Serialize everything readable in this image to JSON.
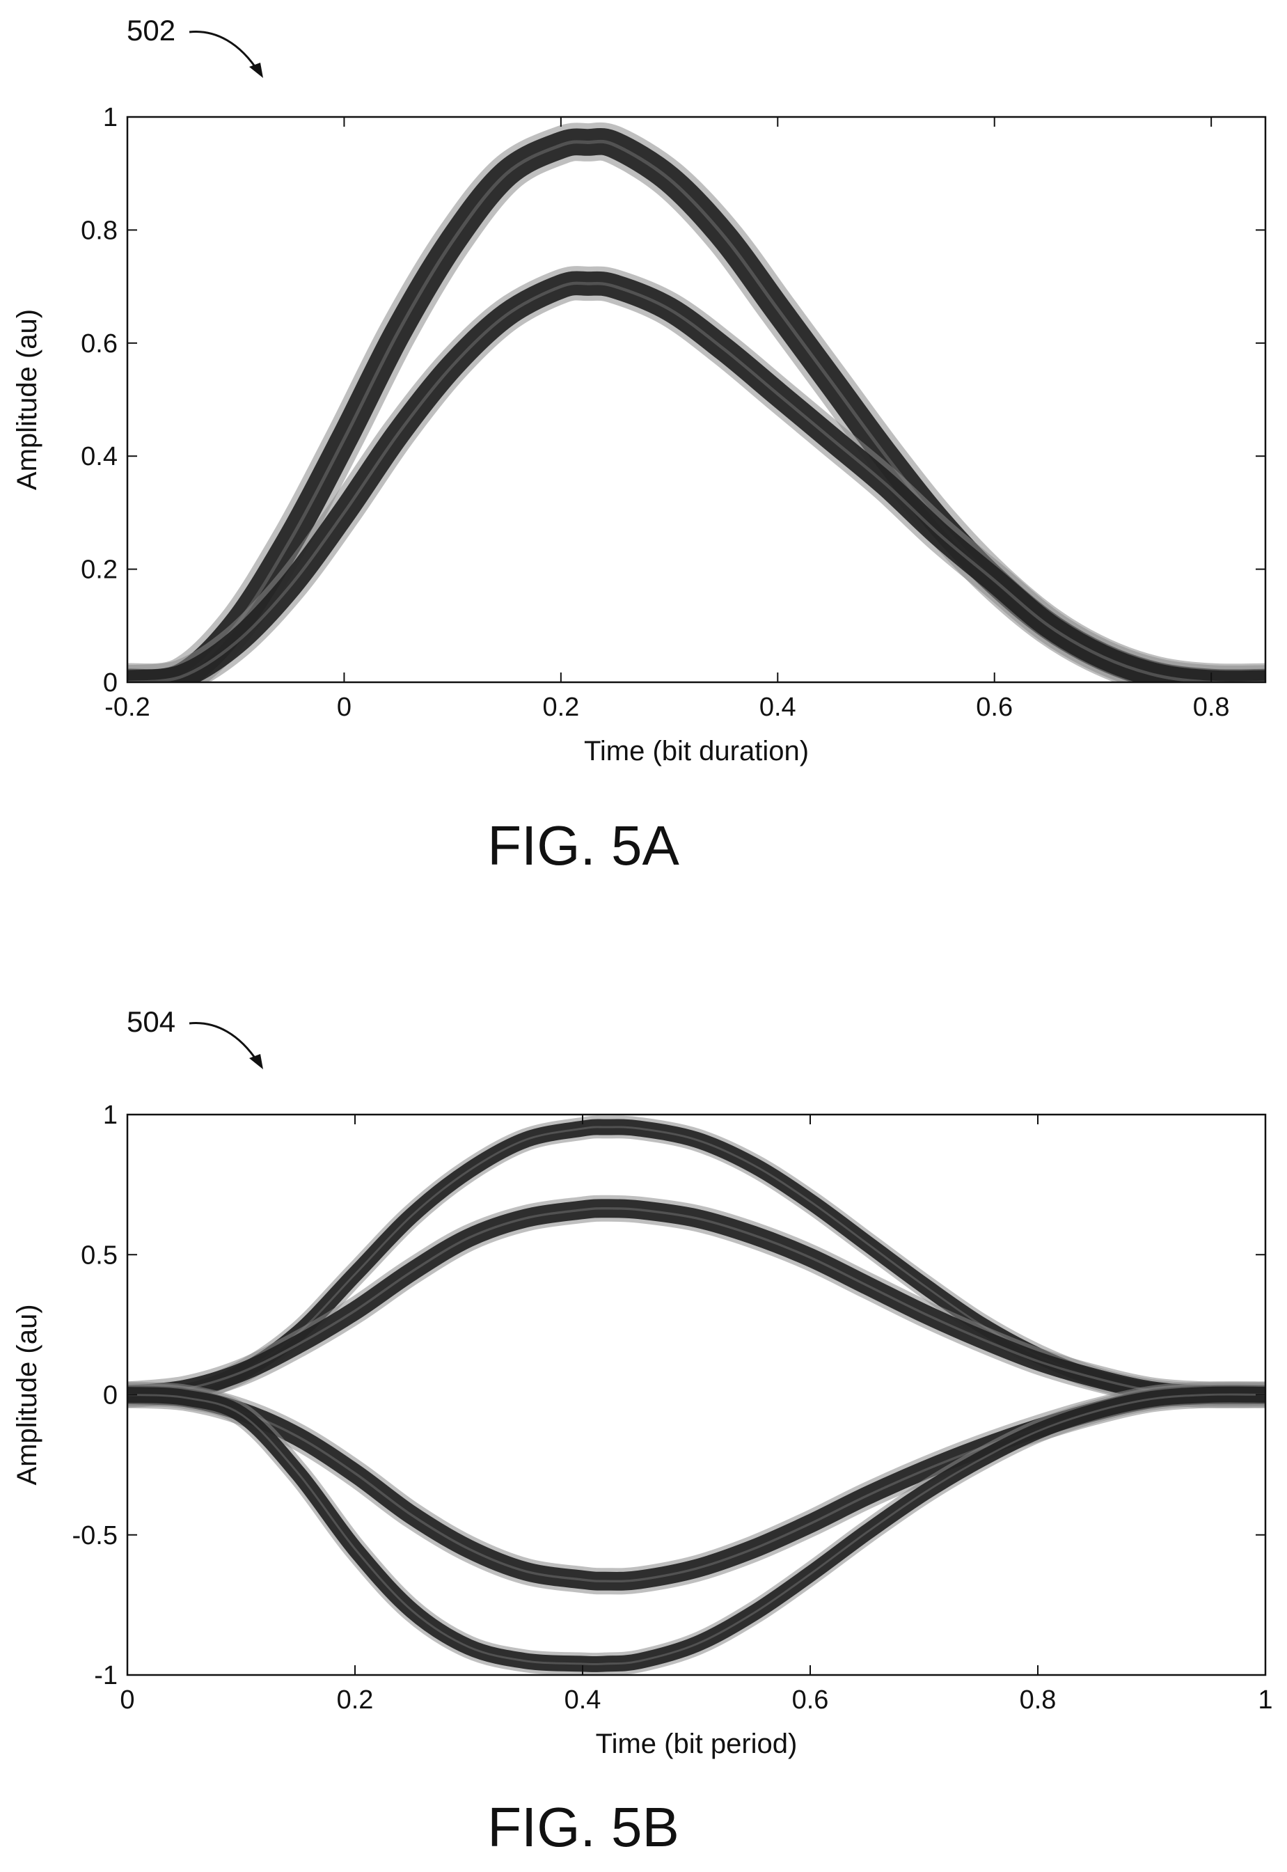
{
  "figures": [
    {
      "ref_number": "502",
      "caption": "FIG. 5A"
    },
    {
      "ref_number": "504",
      "caption": "FIG. 5B"
    }
  ],
  "chart_data": [
    {
      "type": "line",
      "title": "",
      "xlabel": "Time (bit duration)",
      "ylabel": "Amplitude (au)",
      "xlim": [
        -0.2,
        0.85
      ],
      "ylim": [
        0,
        1
      ],
      "xticks": [
        -0.2,
        0,
        0.2,
        0.4,
        0.6,
        0.8
      ],
      "xtick_labels": [
        "-0.2",
        "0",
        "0.2",
        "0.4",
        "0.6",
        "0.8"
      ],
      "yticks": [
        0,
        0.2,
        0.4,
        0.6,
        0.8,
        1
      ],
      "ytick_labels": [
        "0",
        "0.2",
        "0.4",
        "0.6",
        "0.8",
        "1"
      ],
      "grid": false,
      "legend": "none",
      "series": [
        {
          "x": [
            -0.2,
            -0.15,
            -0.1,
            -0.05,
            0,
            0.05,
            0.1,
            0.15,
            0.2,
            0.225,
            0.25,
            0.3,
            0.35,
            0.4,
            0.45,
            0.5,
            0.55,
            0.6,
            0.65,
            0.7,
            0.75,
            0.8,
            0.85
          ],
          "y": [
            0,
            0.01,
            0.1,
            0.25,
            0.43,
            0.62,
            0.78,
            0.9,
            0.95,
            0.955,
            0.95,
            0.89,
            0.79,
            0.66,
            0.53,
            0.4,
            0.28,
            0.18,
            0.1,
            0.045,
            0.012,
            0,
            0
          ],
          "band_width": 0.05
        },
        {
          "x": [
            -0.2,
            -0.15,
            -0.1,
            -0.05,
            0,
            0.05,
            0.1,
            0.15,
            0.2,
            0.225,
            0.25,
            0.3,
            0.35,
            0.4,
            0.45,
            0.5,
            0.55,
            0.6,
            0.65,
            0.7,
            0.75,
            0.8,
            0.85
          ],
          "y": [
            0,
            0.01,
            0.07,
            0.17,
            0.3,
            0.44,
            0.56,
            0.65,
            0.7,
            0.705,
            0.7,
            0.66,
            0.59,
            0.51,
            0.43,
            0.35,
            0.26,
            0.18,
            0.1,
            0.045,
            0.012,
            0,
            0
          ],
          "band_width": 0.045
        }
      ]
    },
    {
      "type": "line",
      "title": "",
      "xlabel": "Time (bit period)",
      "ylabel": "Amplitude (au)",
      "xlim": [
        0,
        1
      ],
      "ylim": [
        -1,
        1
      ],
      "xticks": [
        0,
        0.2,
        0.4,
        0.6,
        0.8,
        1
      ],
      "xtick_labels": [
        "0",
        "0.2",
        "0.4",
        "0.6",
        "0.8",
        "1"
      ],
      "yticks": [
        -1,
        -0.5,
        0,
        0.5,
        1
      ],
      "ytick_labels": [
        "-1",
        "-0.5",
        "0",
        "0.5",
        "1"
      ],
      "grid": false,
      "legend": "none",
      "series": [
        {
          "x": [
            0,
            0.05,
            0.1,
            0.15,
            0.2,
            0.25,
            0.3,
            0.35,
            0.4,
            0.42,
            0.45,
            0.5,
            0.55,
            0.6,
            0.65,
            0.7,
            0.75,
            0.8,
            0.85,
            0.9,
            0.95,
            1
          ],
          "y": [
            0,
            0.01,
            0.08,
            0.22,
            0.43,
            0.64,
            0.8,
            0.91,
            0.95,
            0.955,
            0.95,
            0.91,
            0.82,
            0.69,
            0.54,
            0.39,
            0.25,
            0.14,
            0.06,
            0.015,
            0,
            0
          ],
          "band_width": 0.06
        },
        {
          "x": [
            0,
            0.05,
            0.1,
            0.15,
            0.2,
            0.25,
            0.3,
            0.35,
            0.4,
            0.42,
            0.45,
            0.5,
            0.55,
            0.6,
            0.65,
            0.7,
            0.75,
            0.8,
            0.85,
            0.9,
            0.95,
            1
          ],
          "y": [
            0,
            0.02,
            0.08,
            0.18,
            0.3,
            0.44,
            0.56,
            0.63,
            0.66,
            0.665,
            0.66,
            0.63,
            0.57,
            0.49,
            0.39,
            0.29,
            0.2,
            0.12,
            0.06,
            0.015,
            0,
            0
          ],
          "band_width": 0.07
        },
        {
          "x": [
            0,
            0.05,
            0.1,
            0.15,
            0.2,
            0.25,
            0.3,
            0.35,
            0.4,
            0.42,
            0.45,
            0.5,
            0.55,
            0.6,
            0.65,
            0.7,
            0.75,
            0.8,
            0.85,
            0.9,
            0.95,
            1
          ],
          "y": [
            0,
            -0.01,
            -0.06,
            -0.15,
            -0.28,
            -0.43,
            -0.55,
            -0.63,
            -0.66,
            -0.665,
            -0.66,
            -0.62,
            -0.55,
            -0.46,
            -0.36,
            -0.27,
            -0.19,
            -0.12,
            -0.06,
            -0.015,
            0,
            0
          ],
          "band_width": 0.07
        },
        {
          "x": [
            0,
            0.05,
            0.1,
            0.15,
            0.2,
            0.25,
            0.3,
            0.35,
            0.4,
            0.42,
            0.45,
            0.5,
            0.55,
            0.6,
            0.65,
            0.7,
            0.75,
            0.8,
            0.85,
            0.9,
            0.95,
            1
          ],
          "y": [
            0,
            -0.01,
            -0.07,
            -0.28,
            -0.55,
            -0.77,
            -0.9,
            -0.95,
            -0.96,
            -0.96,
            -0.95,
            -0.89,
            -0.78,
            -0.64,
            -0.49,
            -0.35,
            -0.23,
            -0.13,
            -0.06,
            -0.015,
            0,
            0
          ],
          "band_width": 0.06
        }
      ]
    }
  ]
}
